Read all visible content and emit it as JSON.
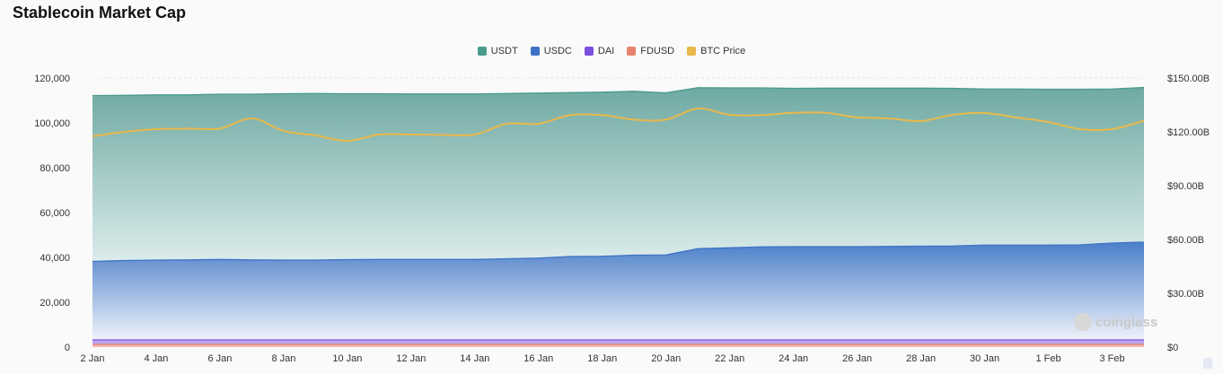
{
  "chart_data": {
    "type": "area",
    "title": "Stablecoin Market Cap",
    "x": [
      "2 Jan",
      "3 Jan",
      "4 Jan",
      "5 Jan",
      "6 Jan",
      "7 Jan",
      "8 Jan",
      "9 Jan",
      "10 Jan",
      "11 Jan",
      "12 Jan",
      "13 Jan",
      "14 Jan",
      "15 Jan",
      "16 Jan",
      "17 Jan",
      "18 Jan",
      "19 Jan",
      "20 Jan",
      "21 Jan",
      "22 Jan",
      "23 Jan",
      "24 Jan",
      "25 Jan",
      "26 Jan",
      "27 Jan",
      "28 Jan",
      "29 Jan",
      "30 Jan",
      "31 Jan",
      "1 Feb",
      "2 Feb",
      "3 Feb",
      "4 Feb"
    ],
    "xticks": [
      "2 Jan",
      "4 Jan",
      "6 Jan",
      "8 Jan",
      "10 Jan",
      "12 Jan",
      "14 Jan",
      "16 Jan",
      "18 Jan",
      "20 Jan",
      "22 Jan",
      "24 Jan",
      "26 Jan",
      "28 Jan",
      "30 Jan",
      "1 Feb",
      "3 Feb"
    ],
    "y_left": {
      "ticks": [
        "0",
        "20,000",
        "40,000",
        "60,000",
        "80,000",
        "100,000",
        "120,000"
      ],
      "range": [
        0,
        120000
      ]
    },
    "y_right": {
      "ticks": [
        "$0",
        "$30.00B",
        "$60.00B",
        "$90.00B",
        "$120.00B",
        "$150.00B"
      ],
      "range": [
        0,
        150
      ]
    },
    "grid": true,
    "legend_position": "top-center",
    "series": [
      {
        "name": "USDT",
        "color": "#4a9a8c",
        "axis": "left",
        "stacked": true,
        "values": [
          74000,
          73700,
          73700,
          73600,
          73700,
          73900,
          74200,
          74300,
          74000,
          73900,
          73800,
          73800,
          73800,
          73700,
          73600,
          73100,
          73200,
          73100,
          72300,
          71800,
          71300,
          70900,
          70600,
          70700,
          70700,
          70600,
          70500,
          70300,
          69600,
          69600,
          69500,
          69400,
          68700,
          69000
        ]
      },
      {
        "name": "USDC",
        "color": "#3f72c6",
        "axis": "left",
        "stacked": true,
        "values": [
          35000,
          35400,
          35600,
          35700,
          35900,
          35700,
          35600,
          35600,
          35800,
          35900,
          35900,
          35900,
          35900,
          36200,
          36500,
          37200,
          37300,
          37800,
          37900,
          40700,
          41100,
          41500,
          41600,
          41600,
          41600,
          41700,
          41800,
          41900,
          42300,
          42300,
          42300,
          42400,
          43200,
          43600
        ]
      },
      {
        "name": "DAI",
        "color": "#7b4fe0",
        "axis": "left",
        "stacked": true,
        "values": [
          2000,
          2000,
          2000,
          2000,
          2000,
          2000,
          2000,
          2000,
          2000,
          2000,
          2000,
          2000,
          2000,
          2000,
          2000,
          2000,
          2000,
          2000,
          2000,
          2000,
          2000,
          2000,
          2000,
          2000,
          2000,
          2000,
          2000,
          2000,
          2000,
          2000,
          2000,
          2000,
          2000,
          2000
        ]
      },
      {
        "name": "FDUSD",
        "color": "#e8826e",
        "axis": "left",
        "stacked": true,
        "values": [
          1200,
          1200,
          1200,
          1200,
          1200,
          1200,
          1200,
          1200,
          1200,
          1200,
          1200,
          1200,
          1200,
          1200,
          1200,
          1200,
          1200,
          1200,
          1200,
          1200,
          1200,
          1200,
          1200,
          1200,
          1200,
          1200,
          1200,
          1200,
          1200,
          1200,
          1200,
          1200,
          1200,
          1200
        ]
      },
      {
        "name": "BTC Price",
        "color": "#e8b84a",
        "axis": "right",
        "stacked": false,
        "values": [
          117.5,
          120,
          121.5,
          121.8,
          121.8,
          127.5,
          120.5,
          118,
          115,
          118.5,
          118.5,
          118.3,
          118.5,
          124.5,
          124.5,
          129.3,
          129.3,
          126.8,
          126.8,
          133,
          129.5,
          129.3,
          130.6,
          130.6,
          128.1,
          127.5,
          126,
          129.5,
          130.5,
          128,
          125.5,
          121.5,
          121.5,
          126.2
        ]
      }
    ]
  },
  "watermark": "coinglass"
}
